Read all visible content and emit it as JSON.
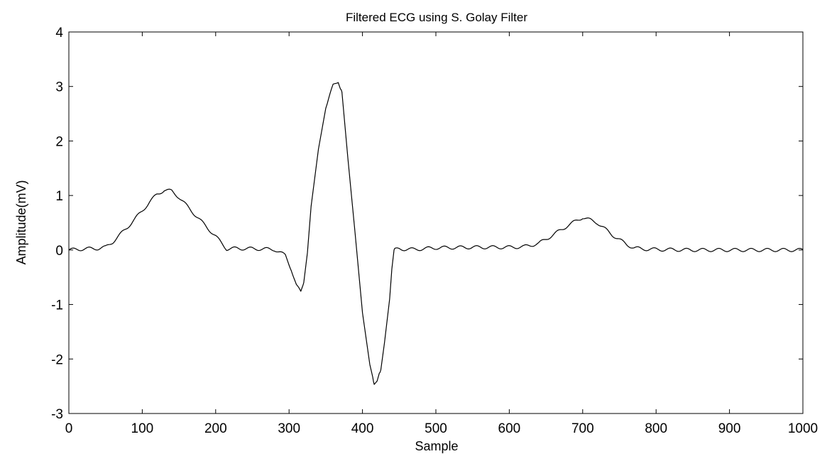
{
  "chart_data": {
    "type": "line",
    "title": "Filtered ECG using S. Golay Filter",
    "xlabel": "Sample",
    "ylabel": "Amplitude(mV)",
    "xlim": [
      0,
      1000
    ],
    "ylim": [
      -3,
      4
    ],
    "xticks": [
      0,
      100,
      200,
      300,
      400,
      500,
      600,
      700,
      800,
      900,
      1000
    ],
    "yticks": [
      -3,
      -2,
      -1,
      0,
      1,
      2,
      3,
      4
    ],
    "grid": false,
    "legend": "none",
    "colors": {
      "line": "#000000",
      "axes": "#000000",
      "background": "#ffffff"
    },
    "series": [
      {
        "x": [
          0,
          20,
          40,
          50,
          60,
          80,
          100,
          110,
          120,
          130,
          140,
          150,
          160,
          180,
          200,
          215,
          230,
          260,
          280,
          295,
          303,
          310,
          316,
          320,
          325,
          330,
          340,
          350,
          360,
          367,
          372,
          380,
          390,
          400,
          410,
          416,
          420,
          425,
          430,
          437,
          440,
          443,
          450,
          470,
          500,
          550,
          600,
          620,
          640,
          660,
          680,
          700,
          720,
          740,
          760,
          770,
          780,
          800,
          850,
          900,
          950,
          1000
        ],
        "y": [
          0.0,
          0.02,
          0.03,
          0.05,
          0.15,
          0.42,
          0.72,
          0.88,
          1.02,
          1.1,
          1.08,
          0.97,
          0.82,
          0.53,
          0.25,
          0.02,
          0.03,
          0.02,
          0.01,
          -0.1,
          -0.35,
          -0.65,
          -0.78,
          -0.6,
          -0.05,
          0.8,
          1.85,
          2.6,
          3.02,
          3.1,
          2.9,
          1.7,
          0.3,
          -1.15,
          -2.1,
          -2.45,
          -2.42,
          -2.2,
          -1.7,
          -0.9,
          -0.35,
          0.0,
          0.02,
          0.01,
          0.04,
          0.05,
          0.05,
          0.06,
          0.12,
          0.28,
          0.45,
          0.6,
          0.5,
          0.28,
          0.1,
          0.04,
          0.02,
          0.01,
          0.0,
          0.0,
          0.0,
          0.0
        ]
      }
    ]
  }
}
